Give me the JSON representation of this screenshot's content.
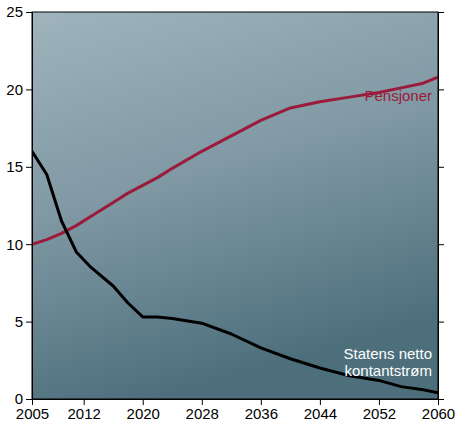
{
  "chart_data": {
    "type": "line",
    "x": [
      2005,
      2007,
      2009,
      2011,
      2013,
      2016,
      2018,
      2020,
      2022,
      2024,
      2028,
      2032,
      2036,
      2040,
      2044,
      2048,
      2052,
      2055,
      2058,
      2060
    ],
    "series": [
      {
        "name": "Pensjoner",
        "color": "#9b1b3a",
        "values": [
          10,
          10.3,
          10.7,
          11.2,
          11.8,
          12.7,
          13.3,
          13.8,
          14.3,
          14.9,
          16.0,
          17.0,
          18.0,
          18.8,
          19.2,
          19.5,
          19.8,
          20.1,
          20.4,
          20.8
        ]
      },
      {
        "name": "Statens netto kontantstrøm",
        "color": "#000000",
        "values": [
          16,
          14.5,
          11.5,
          9.5,
          8.5,
          7.3,
          6.2,
          5.3,
          5.3,
          5.2,
          4.9,
          4.2,
          3.3,
          2.6,
          2.0,
          1.5,
          1.2,
          0.8,
          0.6,
          0.4
        ]
      }
    ],
    "xlim": [
      2005,
      2060
    ],
    "xticks": [
      2005,
      2012,
      2020,
      2028,
      2036,
      2044,
      2052,
      2060
    ],
    "ylim": [
      0,
      25
    ],
    "yticks": [
      0,
      5,
      10,
      15,
      20,
      25
    ],
    "grid": false
  }
}
